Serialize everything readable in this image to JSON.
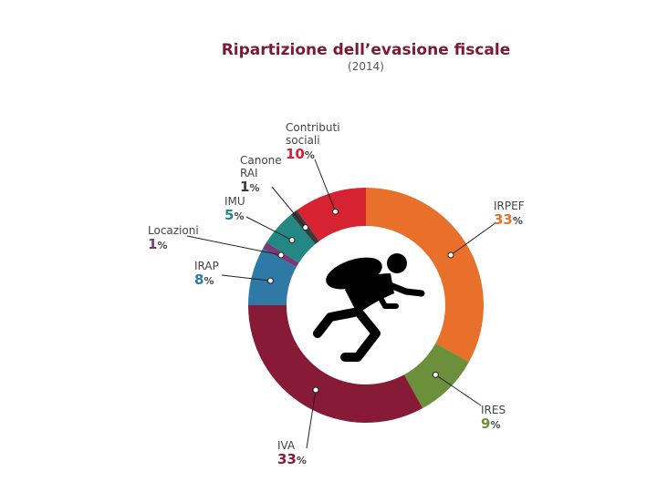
{
  "chart_data": {
    "type": "pie",
    "variant": "donut",
    "title": "Ripartizione dell’evasione fiscale",
    "subtitle": "(2014)",
    "unit": "%",
    "slices": [
      {
        "name": "IRPEF",
        "lines": [
          "IRPEF"
        ],
        "value": 33,
        "color": "#e8702a"
      },
      {
        "name": "IRES",
        "lines": [
          "IRES"
        ],
        "value": 9,
        "color": "#6b8f3a"
      },
      {
        "name": "IVA",
        "lines": [
          "IVA"
        ],
        "value": 33,
        "color": "#861a37"
      },
      {
        "name": "IRAP",
        "lines": [
          "IRAP"
        ],
        "value": 8,
        "color": "#2f79a7"
      },
      {
        "name": "Locazioni",
        "lines": [
          "Locazioni"
        ],
        "value": 1,
        "color": "#7a3a78"
      },
      {
        "name": "IMU",
        "lines": [
          "IMU"
        ],
        "value": 5,
        "color": "#238783"
      },
      {
        "name": "Canone RAI",
        "lines": [
          "Canone",
          "RAI"
        ],
        "value": 1,
        "color": "#3a3a3a"
      },
      {
        "name": "Contributi sociali",
        "lines": [
          "Contributi",
          "sociali"
        ],
        "value": 10,
        "color": "#d62231"
      }
    ]
  },
  "icons": {
    "center": "running-thief-icon"
  }
}
